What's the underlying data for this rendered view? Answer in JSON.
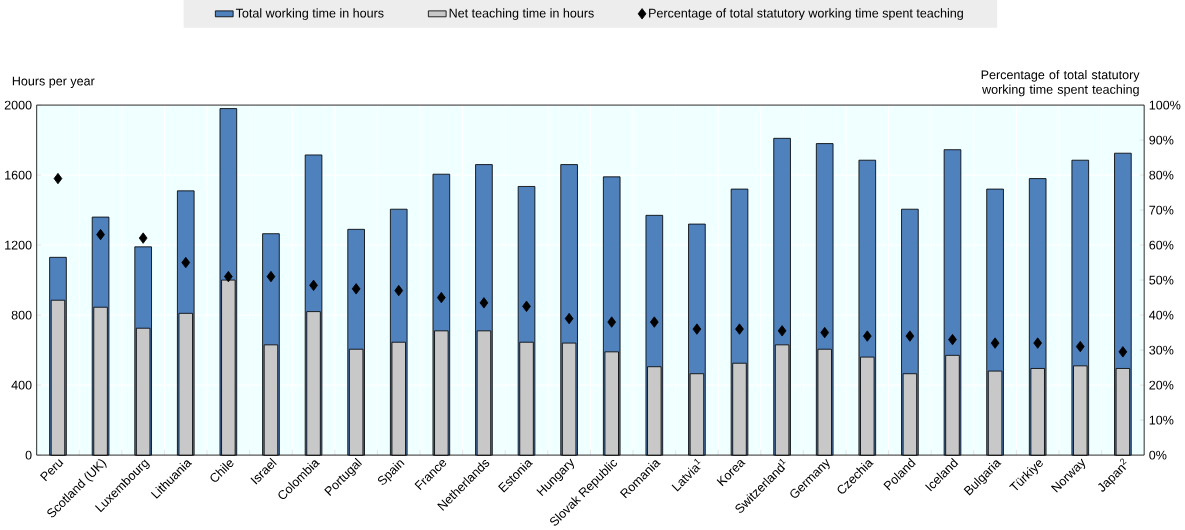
{
  "chart_data": {
    "type": "bar",
    "ylabel": "Hours per year",
    "y2label": "Percentage of total statutory working time spent teaching",
    "categories": [
      "Peru",
      "Scotland (UK)",
      "Luxembourg",
      "Lithuania",
      "Chile",
      "Israel",
      "Colombia",
      "Portugal",
      "Spain",
      "France",
      "Netherlands",
      "Estonia",
      "Hungary",
      "Slovak Republic",
      "Romania",
      "Latvia$^{1}$",
      "Korea",
      "Switzerland$^{1}$",
      "Germany",
      "Czechia",
      "Poland",
      "Iceland",
      "Bulgaria",
      "Türkiye",
      "Norway",
      "Japan$^{2}$"
    ],
    "series": [
      {
        "name": "Total working time in hours",
        "color": "#4f81bd",
        "values": [
          1130,
          1360,
          1190,
          1510,
          1980,
          1265,
          1715,
          1290,
          1405,
          1605,
          1660,
          1535,
          1660,
          1590,
          1370,
          1320,
          1520,
          1810,
          1780,
          1685,
          1405,
          1745,
          1520,
          1580,
          1685,
          1725
        ]
      },
      {
        "name": "Net teaching time in hours",
        "color": "#c8c8c8",
        "values": [
          885,
          845,
          725,
          810,
          1000,
          630,
          820,
          605,
          645,
          710,
          710,
          645,
          640,
          590,
          505,
          465,
          525,
          630,
          605,
          560,
          465,
          570,
          480,
          495,
          510,
          495
        ]
      },
      {
        "name": "Percentage of total statutory working time spent teaching",
        "type": "scatter",
        "axis": "y2",
        "color": "#000000",
        "marker": "diamond",
        "values": [
          79,
          63,
          62,
          55,
          51,
          51,
          48.5,
          47.5,
          47,
          45,
          43.5,
          42.5,
          39,
          38,
          38,
          36,
          36,
          35.5,
          35,
          34,
          34,
          33,
          32,
          32,
          31,
          29.5
        ]
      }
    ],
    "ylim": [
      0,
      2000
    ],
    "yticks": [
      0,
      400,
      800,
      1200,
      1600,
      2000
    ],
    "y2lim": [
      0,
      100
    ],
    "y2ticks": [
      {
        "value": 0,
        "label": "0%"
      },
      {
        "value": 10,
        "label": "10%"
      },
      {
        "value": 20,
        "label": "20%"
      },
      {
        "value": 30,
        "label": "30%"
      },
      {
        "value": 40,
        "label": "40%"
      },
      {
        "value": 50,
        "label": "50%"
      },
      {
        "value": 60,
        "label": "60%"
      },
      {
        "value": 70,
        "label": "70%"
      },
      {
        "value": 80,
        "label": "80%"
      },
      {
        "value": 90,
        "label": "90%"
      },
      {
        "value": 100,
        "label": "100%"
      }
    ],
    "grid": true,
    "legend": "top"
  }
}
